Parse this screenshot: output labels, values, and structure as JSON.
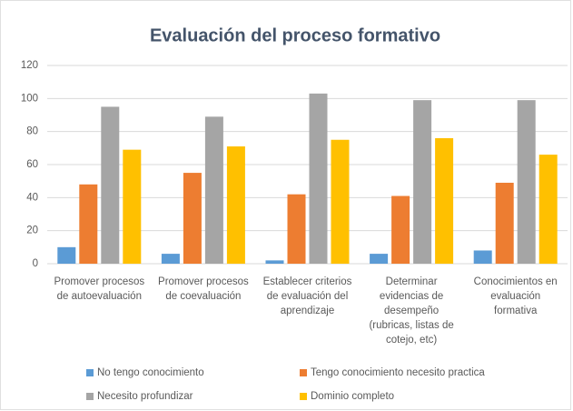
{
  "chart_data": {
    "type": "bar",
    "title": "Evaluación del proceso formativo",
    "categories": [
      [
        "Promover procesos",
        "de autoevaluación"
      ],
      [
        "Promover procesos",
        "de coevaluación"
      ],
      [
        "Establecer criterios",
        "de evaluación del",
        "aprendizaje"
      ],
      [
        "Determinar",
        "evidencias de",
        "desempeño",
        "(rubricas, listas de",
        "cotejo, etc)"
      ],
      [
        "Conocimientos en",
        "evaluación",
        "formativa"
      ]
    ],
    "series": [
      {
        "name": "No tengo conocimiento",
        "color": "#5b9bd5",
        "values": [
          10,
          6,
          2,
          6,
          8
        ]
      },
      {
        "name": "Tengo conocimiento necesito practica",
        "color": "#ed7d31",
        "values": [
          48,
          55,
          42,
          41,
          49
        ]
      },
      {
        "name": "Necesito profundizar",
        "color": "#a5a5a5",
        "values": [
          95,
          89,
          103,
          99,
          99
        ]
      },
      {
        "name": "Dominio completo",
        "color": "#ffc000",
        "values": [
          69,
          71,
          75,
          76,
          66
        ]
      }
    ],
    "ylim": [
      0,
      120
    ],
    "yticks": [
      0,
      20,
      40,
      60,
      80,
      100,
      120
    ],
    "grid": true
  }
}
